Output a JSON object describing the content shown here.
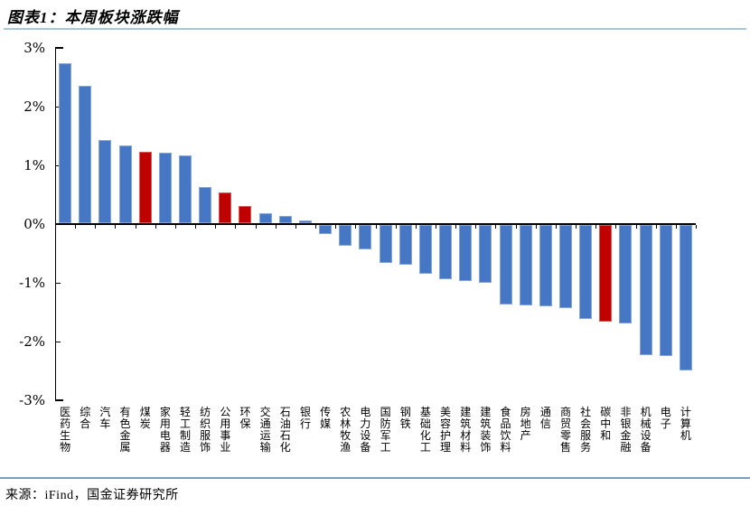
{
  "header": {
    "title": "图表1：本周板块涨跌幅"
  },
  "footer": {
    "source": "来源：iFind，国金证券研究所"
  },
  "colors": {
    "bar_default": "#4677C4",
    "bar_highlight": "#C00000",
    "separator_top": "#A9C6DA",
    "separator_bottom": "#7E9EB8",
    "axis": "#000000",
    "text": "#000000"
  },
  "chart_data": {
    "type": "bar",
    "title": "图表1：本周板块涨跌幅",
    "xlabel": "",
    "ylabel": "",
    "ylim": [
      -3,
      3
    ],
    "yticks": [
      3,
      2,
      1,
      0,
      -1,
      -2,
      -3
    ],
    "ytick_labels": [
      "3%",
      "2%",
      "1%",
      "0%",
      "-1%",
      "-2%",
      "-3%"
    ],
    "grid": false,
    "legend": false,
    "source": "来源：iFind，国金证券研究所",
    "categories": [
      "医药生物",
      "综合",
      "汽车",
      "有色金属",
      "煤炭",
      "家用电器",
      "轻工制造",
      "纺织服饰",
      "公用事业",
      "环保",
      "交通运输",
      "石油石化",
      "银行",
      "传媒",
      "农林牧渔",
      "电力设备",
      "国防军工",
      "钢铁",
      "基础化工",
      "美容护理",
      "建筑材料",
      "建筑装饰",
      "食品饮料",
      "房地产",
      "通信",
      "商贸零售",
      "社会服务",
      "碳中和",
      "非银金融",
      "机械设备",
      "电子",
      "计算机"
    ],
    "values": [
      2.72,
      2.34,
      1.41,
      1.32,
      1.22,
      1.2,
      1.15,
      0.61,
      0.52,
      0.3,
      0.17,
      0.12,
      0.05,
      -0.15,
      -0.35,
      -0.41,
      -0.65,
      -0.67,
      -0.83,
      -0.93,
      -0.95,
      -0.98,
      -1.36,
      -1.37,
      -1.39,
      -1.42,
      -1.6,
      -1.65,
      -1.67,
      -2.21,
      -2.23,
      -2.47
    ],
    "bar_colors": [
      "default",
      "default",
      "default",
      "default",
      "highlight",
      "default",
      "default",
      "default",
      "highlight",
      "highlight",
      "default",
      "default",
      "default",
      "default",
      "default",
      "default",
      "default",
      "default",
      "default",
      "default",
      "default",
      "default",
      "default",
      "default",
      "default",
      "default",
      "default",
      "highlight",
      "default",
      "default",
      "default",
      "default"
    ],
    "highlighted_categories": [
      "煤炭",
      "公用事业",
      "环保",
      "碳中和"
    ]
  }
}
